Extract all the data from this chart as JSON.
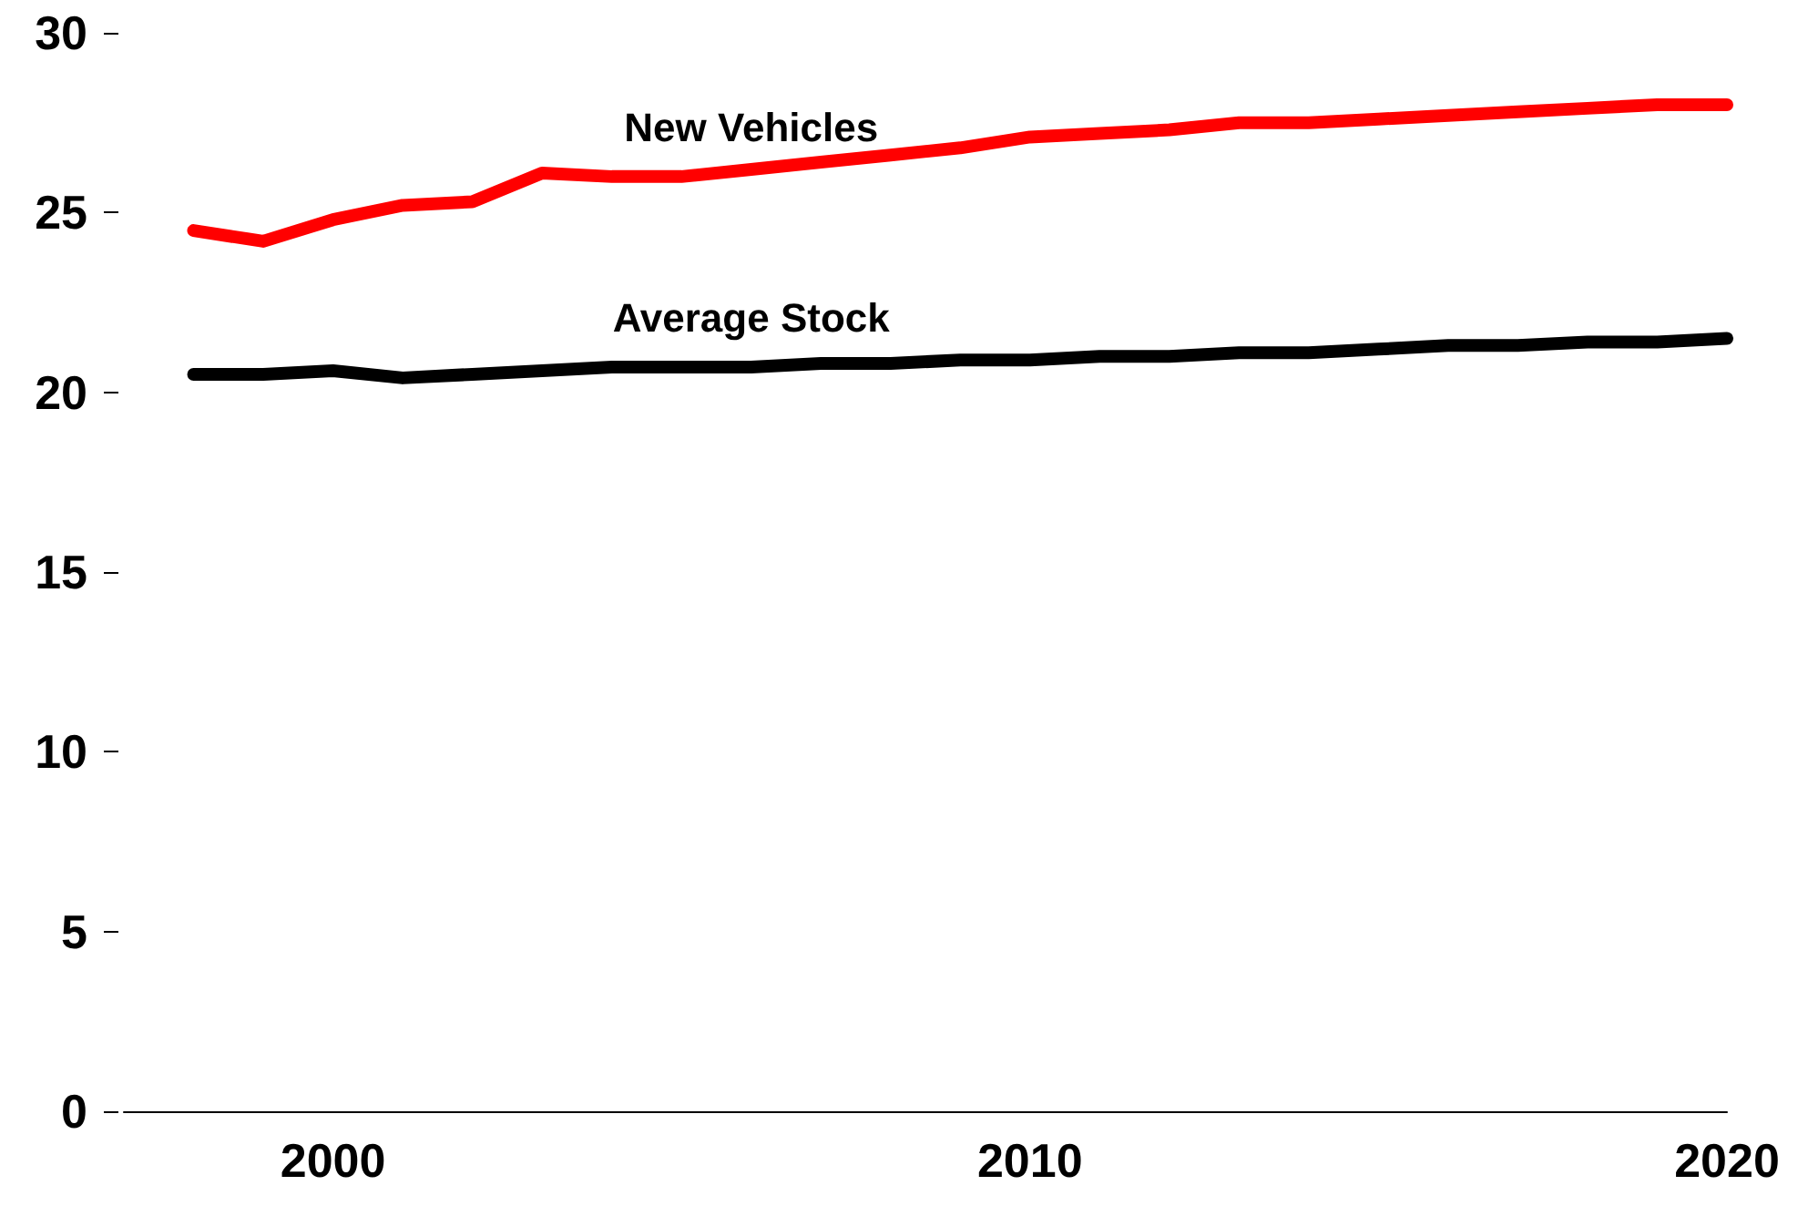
{
  "chart_data": {
    "type": "line",
    "x": [
      1998,
      1999,
      2000,
      2001,
      2002,
      2003,
      2004,
      2005,
      2006,
      2007,
      2008,
      2009,
      2010,
      2011,
      2012,
      2013,
      2014,
      2015,
      2016,
      2017,
      2018,
      2019,
      2020
    ],
    "series": [
      {
        "name": "New Vehicles",
        "color": "#ff0000",
        "values": [
          24.5,
          24.2,
          24.8,
          25.2,
          25.3,
          26.1,
          26.0,
          26.0,
          26.2,
          26.4,
          26.6,
          26.8,
          27.1,
          27.2,
          27.3,
          27.5,
          27.5,
          27.6,
          27.7,
          27.8,
          27.9,
          28.0,
          28.0
        ]
      },
      {
        "name": "Average Stock",
        "color": "#000000",
        "values": [
          20.5,
          20.5,
          20.6,
          20.4,
          20.5,
          20.6,
          20.7,
          20.7,
          20.7,
          20.8,
          20.8,
          20.9,
          20.9,
          21.0,
          21.0,
          21.1,
          21.1,
          21.2,
          21.3,
          21.3,
          21.4,
          21.4,
          21.5
        ]
      }
    ],
    "xlim": [
      1997,
      2020
    ],
    "xticks": [
      2000,
      2010,
      2020
    ],
    "ylim": [
      0,
      30
    ],
    "yticks": [
      0,
      5,
      10,
      15,
      20,
      25,
      30
    ],
    "grid": false,
    "legend": false,
    "marker": "none",
    "line_style": "solid"
  }
}
